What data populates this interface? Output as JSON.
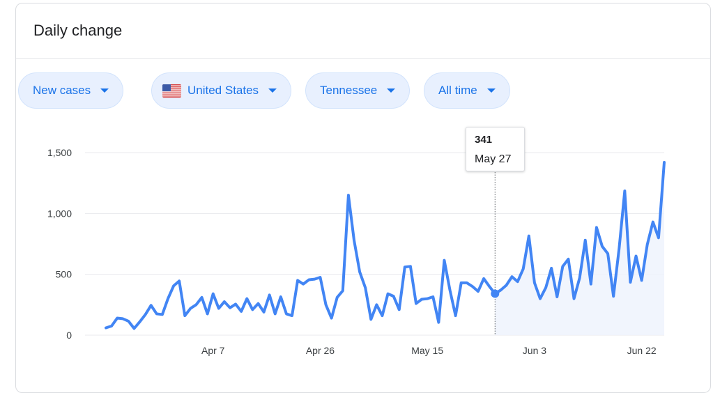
{
  "card": {
    "title": "Daily change"
  },
  "chips": [
    {
      "label": "New cases",
      "has_flag": false
    },
    {
      "label": "United States",
      "has_flag": true
    },
    {
      "label": "Tennessee",
      "has_flag": false
    },
    {
      "label": "All time",
      "has_flag": false
    }
  ],
  "colors": {
    "line": "#4285f4",
    "chip_text": "#1a73e8",
    "chip_bg": "#e8f0fe",
    "grid": "#e8eaed"
  },
  "tooltip": {
    "value": "341",
    "date": "May 27"
  },
  "chart_data": {
    "type": "line",
    "title": "",
    "xlabel": "",
    "ylabel": "",
    "ylim": [
      0,
      1500
    ],
    "grid": true,
    "y_ticks": [
      0,
      500,
      1000,
      1500
    ],
    "y_tick_labels": [
      "0",
      "500",
      "1,000",
      "1,500"
    ],
    "x_ticks": [
      "Apr 7",
      "Apr 26",
      "May 15",
      "Jun 3",
      "Jun 22"
    ],
    "highlight": {
      "date": "May 27",
      "value": 341
    },
    "series": [
      {
        "values": [
          60,
          75,
          140,
          135,
          115,
          55,
          110,
          170,
          245,
          175,
          170,
          300,
          405,
          445,
          160,
          220,
          250,
          310,
          175,
          340,
          220,
          275,
          225,
          255,
          195,
          300,
          210,
          260,
          190,
          330,
          175,
          315,
          175,
          160,
          450,
          420,
          455,
          460,
          475,
          250,
          140,
          310,
          365,
          1150,
          780,
          520,
          390,
          130,
          250,
          160,
          340,
          320,
          210,
          560,
          565,
          260,
          295,
          300,
          315,
          105,
          615,
          370,
          160,
          430,
          430,
          400,
          360,
          465,
          400,
          341,
          370,
          410,
          480,
          440,
          545,
          815,
          430,
          300,
          390,
          550,
          315,
          565,
          625,
          300,
          470,
          780,
          420,
          885,
          730,
          670,
          320,
          710,
          1185,
          435,
          650,
          450,
          745,
          930,
          800,
          1420
        ]
      }
    ]
  }
}
